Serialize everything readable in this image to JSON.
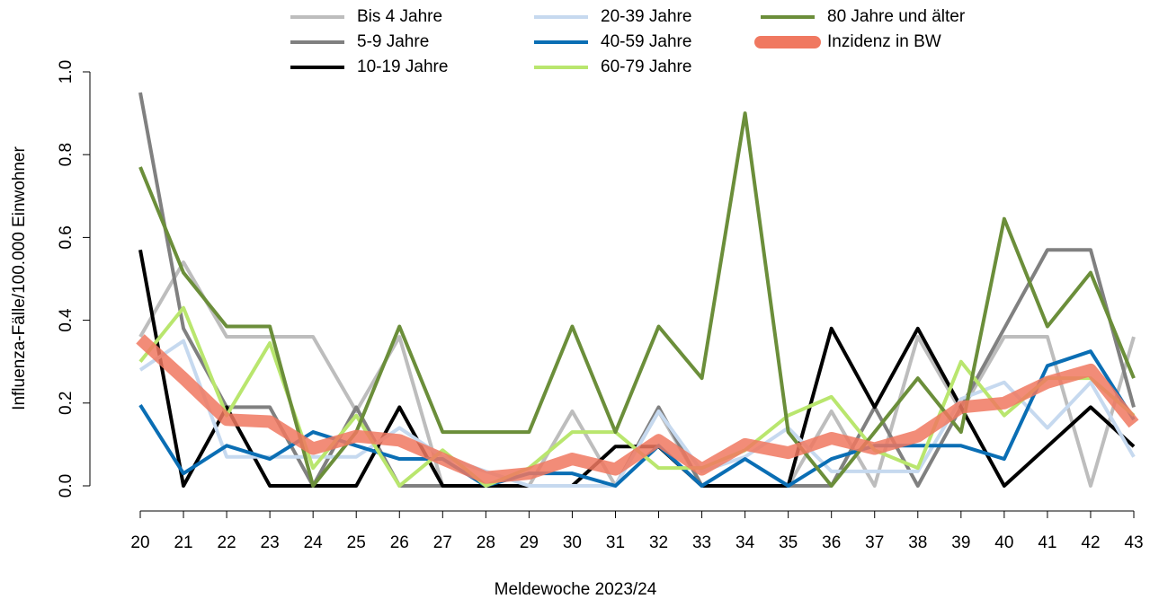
{
  "chart_data": {
    "type": "line",
    "x_label": "Meldewoche 2023/24",
    "y_label": "Influenza-Fälle/100.000 Einwohner",
    "x": [
      20,
      21,
      22,
      23,
      24,
      25,
      26,
      27,
      28,
      29,
      30,
      31,
      32,
      33,
      34,
      35,
      36,
      37,
      38,
      39,
      40,
      41,
      42,
      43
    ],
    "xlim": [
      20,
      43
    ],
    "xticks": [
      20,
      21,
      22,
      23,
      24,
      25,
      26,
      27,
      28,
      29,
      30,
      31,
      32,
      33,
      34,
      35,
      36,
      37,
      38,
      39,
      40,
      41,
      42,
      43
    ],
    "ylim": [
      0,
      1
    ],
    "yticks": [
      {
        "value": 0,
        "label": "0.0"
      },
      0.2,
      0.4,
      0.6,
      0.8,
      {
        "value": 1,
        "label": "1.0"
      }
    ],
    "series": [
      {
        "name": "Bis 4 Jahre",
        "color": "#bdbdbd",
        "values": [
          0.36,
          0.54,
          0.36,
          0.36,
          0.36,
          0.18,
          0.36,
          0,
          0,
          0,
          0.18,
          0,
          0.18,
          0,
          0,
          0,
          0.18,
          0,
          0.36,
          0.18,
          0.36,
          0.36,
          0,
          0.36
        ]
      },
      {
        "name": "5-9 Jahre",
        "color": "#808080",
        "values": [
          0.95,
          0.38,
          0.19,
          0.19,
          0,
          0.19,
          0,
          0,
          0,
          0,
          0,
          0,
          0.19,
          0,
          0,
          0,
          0,
          0.19,
          0,
          0.19,
          0.38,
          0.57,
          0.57,
          0.19
        ]
      },
      {
        "name": "10-19 Jahre",
        "color": "#000000",
        "values": [
          0.57,
          0,
          0.19,
          0,
          0,
          0,
          0.19,
          0,
          0,
          0,
          0,
          0.095,
          0.095,
          0,
          0,
          0,
          0.38,
          0.19,
          0.38,
          0.19,
          0,
          0.095,
          0.19,
          0.095
        ]
      },
      {
        "name": "20-39 Jahre",
        "color": "#c6d9ef",
        "values": [
          0.28,
          0.35,
          0.07,
          0.07,
          0.07,
          0.07,
          0.14,
          0.07,
          0.035,
          0,
          0,
          0,
          0.18,
          0.035,
          0.07,
          0.14,
          0.035,
          0.035,
          0.035,
          0.21,
          0.25,
          0.14,
          0.25,
          0.07
        ]
      },
      {
        "name": "40-59 Jahre",
        "color": "#0a6eb4",
        "values": [
          0.195,
          0.03,
          0.097,
          0.065,
          0.13,
          0.097,
          0.065,
          0.065,
          0,
          0.03,
          0.03,
          0,
          0.097,
          0,
          0.065,
          0,
          0.065,
          0.097,
          0.097,
          0.097,
          0.065,
          0.29,
          0.325,
          0.16
        ]
      },
      {
        "name": "60-79 Jahre",
        "color": "#b9e66e",
        "values": [
          0.3,
          0.43,
          0.17,
          0.345,
          0.043,
          0.17,
          0,
          0.086,
          0,
          0.043,
          0.13,
          0.13,
          0.043,
          0.043,
          0.086,
          0.17,
          0.215,
          0.086,
          0.043,
          0.3,
          0.17,
          0.26,
          0.26,
          0.17
        ]
      },
      {
        "name": "80 Jahre und älter",
        "color": "#6b8e3a",
        "values": [
          0.77,
          0.515,
          0.385,
          0.385,
          0,
          0.13,
          0.385,
          0.13,
          0.13,
          0.13,
          0.385,
          0.13,
          0.385,
          0.26,
          0.9,
          0.13,
          0,
          0.13,
          0.26,
          0.13,
          0.645,
          0.385,
          0.515,
          0.26
        ]
      },
      {
        "name": "Inzidenz in BW",
        "color": "#f07860",
        "values": [
          0.355,
          0.26,
          0.16,
          0.155,
          0.09,
          0.12,
          0.11,
          0.065,
          0.02,
          0.03,
          0.065,
          0.04,
          0.11,
          0.04,
          0.1,
          0.08,
          0.115,
          0.09,
          0.12,
          0.19,
          0.2,
          0.25,
          0.28,
          0.15
        ]
      }
    ]
  }
}
